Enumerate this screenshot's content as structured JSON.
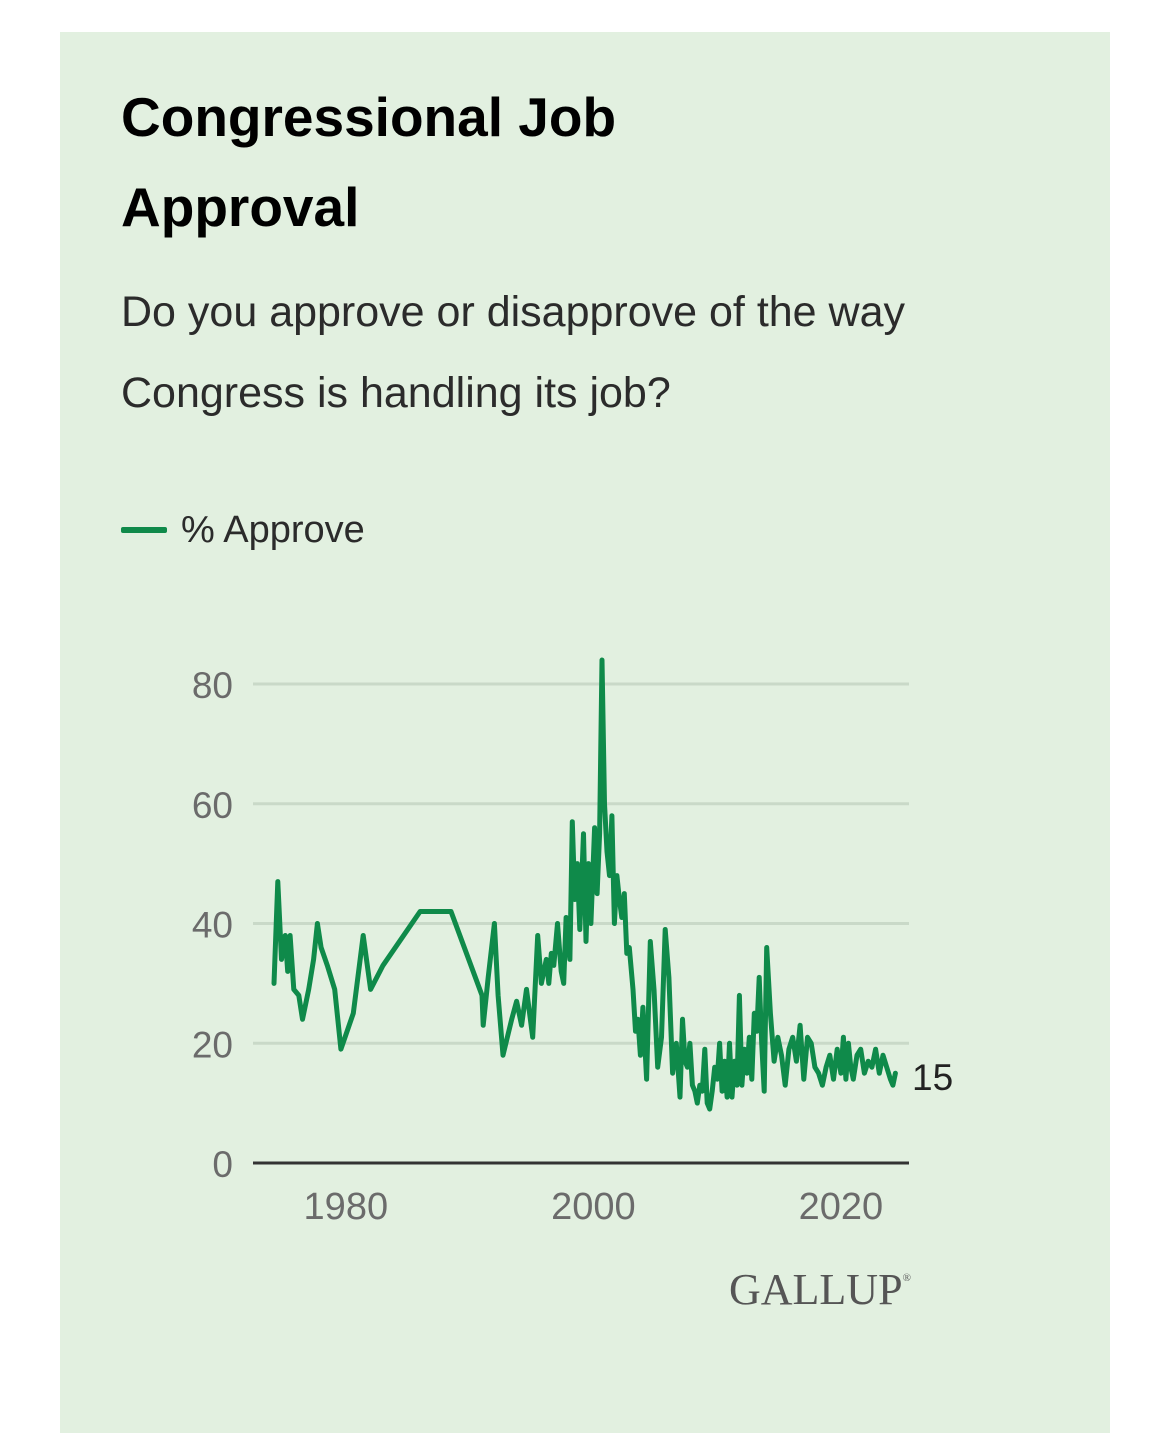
{
  "colors": {
    "background": "#e2f0e0",
    "series": "#0f8a4a",
    "grid": "#c9d9c8",
    "axis": "#333333",
    "tick": "#6b6b6b"
  },
  "title": "Congressional Job Approval",
  "subtitle": "Do you approve or disapprove of the way Congress is handling its job?",
  "brand": "GALLUP",
  "brand_mark": "®",
  "chart_data": {
    "type": "line",
    "title": "Congressional Job Approval",
    "subtitle": "Do you approve or disapprove of the way Congress is handling its job?",
    "legend": "top-left",
    "xlabel": "",
    "ylabel": "",
    "xlim": [
      1972.5,
      2025.5
    ],
    "ylim": [
      0,
      80
    ],
    "x_ticks": [
      1980,
      2000,
      2020
    ],
    "y_ticks": [
      0,
      20,
      40,
      60,
      80
    ],
    "grid": true,
    "end_label": "15",
    "series": [
      {
        "name": "% Approve",
        "color": "#0f8a4a",
        "x": [
          1974.2,
          1974.5,
          1974.8,
          1975.1,
          1975.3,
          1975.5,
          1975.8,
          1976.2,
          1976.5,
          1977.0,
          1977.4,
          1977.7,
          1978.0,
          1978.5,
          1979.1,
          1979.6,
          1980.6,
          1981.4,
          1982.0,
          1983.0,
          1986.0,
          1988.5,
          1991.0,
          1991.1,
          1991.5,
          1992.0,
          1992.3,
          1992.7,
          1993.4,
          1993.8,
          1994.2,
          1994.6,
          1995.1,
          1995.5,
          1995.8,
          1996.2,
          1996.4,
          1996.6,
          1996.8,
          1997.1,
          1997.4,
          1997.6,
          1997.8,
          1998.1,
          1998.3,
          1998.5,
          1998.7,
          1998.9,
          1999.2,
          1999.4,
          1999.6,
          1999.8,
          2000.1,
          2000.3,
          2000.5,
          2000.7,
          2000.9,
          2001.1,
          2001.3,
          2001.5,
          2001.7,
          2001.9,
          2002.1,
          2002.3,
          2002.5,
          2002.7,
          2002.9,
          2003.2,
          2003.4,
          2003.6,
          2003.8,
          2004.0,
          2004.3,
          2004.6,
          2004.9,
          2005.2,
          2005.5,
          2005.8,
          2006.1,
          2006.4,
          2006.7,
          2007.0,
          2007.2,
          2007.4,
          2007.6,
          2007.8,
          2008.0,
          2008.2,
          2008.4,
          2008.6,
          2008.8,
          2009.0,
          2009.2,
          2009.4,
          2009.6,
          2009.8,
          2010.0,
          2010.2,
          2010.4,
          2010.6,
          2010.8,
          2011.0,
          2011.2,
          2011.4,
          2011.6,
          2011.8,
          2012.0,
          2012.2,
          2012.4,
          2012.6,
          2012.8,
          2013.0,
          2013.2,
          2013.4,
          2013.6,
          2013.8,
          2014.0,
          2014.3,
          2014.6,
          2014.9,
          2015.2,
          2015.5,
          2015.8,
          2016.1,
          2016.4,
          2016.7,
          2017.0,
          2017.3,
          2017.6,
          2017.9,
          2018.2,
          2018.5,
          2018.8,
          2019.1,
          2019.4,
          2019.7,
          2020.0,
          2020.2,
          2020.4,
          2020.6,
          2020.8,
          2021.0,
          2021.3,
          2021.6,
          2021.9,
          2022.2,
          2022.5,
          2022.8,
          2023.1,
          2023.4,
          2023.7,
          2024.0,
          2024.2,
          2024.4
        ],
        "values": [
          30,
          47,
          34,
          38,
          32,
          38,
          29,
          28,
          24,
          29,
          34,
          40,
          36,
          33,
          29,
          19,
          25,
          38,
          29,
          33,
          42,
          42,
          28,
          23,
          31,
          40,
          28,
          18,
          24,
          27,
          23,
          29,
          21,
          38,
          30,
          34,
          30,
          35,
          33,
          40,
          32,
          30,
          41,
          34,
          57,
          44,
          50,
          39,
          55,
          37,
          50,
          40,
          56,
          45,
          55,
          84,
          60,
          52,
          48,
          58,
          40,
          48,
          44,
          41,
          45,
          35,
          36,
          29,
          22,
          24,
          18,
          26,
          14,
          37,
          29,
          16,
          21,
          39,
          31,
          15,
          20,
          11,
          24,
          17,
          16,
          20,
          13,
          12,
          10,
          13,
          12,
          19,
          10,
          9,
          12,
          16,
          14,
          20,
          12,
          17,
          11,
          20,
          11,
          17,
          13,
          28,
          13,
          19,
          15,
          21,
          14,
          25,
          22,
          31,
          20,
          12,
          36,
          25,
          17,
          21,
          18,
          13,
          19,
          21,
          17,
          23,
          14,
          21,
          20,
          16,
          15,
          13,
          16,
          18,
          14,
          19,
          15,
          21,
          14,
          20,
          16,
          14,
          18,
          19,
          15,
          17,
          16,
          19,
          15,
          18,
          16,
          14,
          13,
          15
        ]
      }
    ]
  }
}
